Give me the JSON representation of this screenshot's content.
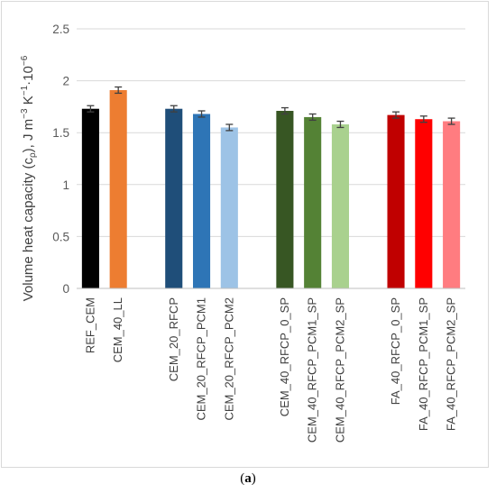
{
  "chart_data": {
    "type": "bar",
    "title": "",
    "ylabel_parts": {
      "main": "Volume heat capacity (c",
      "sub": "ρ",
      "after_sub": "),  J m",
      "sup1": "−3",
      "mid": " K",
      "sup2": "−1",
      "tail": "10",
      "sup3": "−6"
    },
    "ylim": [
      0,
      2.5
    ],
    "yticks": [
      "0",
      "0.5",
      "1",
      "1.5",
      "2",
      "2.5"
    ],
    "ytick_values": [
      0,
      0.5,
      1,
      1.5,
      2,
      2.5
    ],
    "grid": true,
    "categories": [
      "REF_CEM",
      "CEM_40_LL",
      "CEM_20_RFCP",
      "CEM_20_RFCP_PCM1",
      "CEM_20_RFCP_PCM2",
      "CEM_40_RFCP_0_SP",
      "CEM_40_RFCP_PCM1_SP",
      "CEM_40_RFCP_PCM2_SP",
      "FA_40_RFCP_0_SP",
      "FA_40_RFCP_PCM1_SP",
      "FA_40_RFCP_PCM2_SP"
    ],
    "groups": [
      0,
      0,
      1,
      1,
      1,
      2,
      2,
      2,
      3,
      3,
      3
    ],
    "values": [
      1.73,
      1.91,
      1.73,
      1.68,
      1.55,
      1.71,
      1.65,
      1.58,
      1.67,
      1.63,
      1.61
    ],
    "errors": [
      0.03,
      0.03,
      0.03,
      0.03,
      0.03,
      0.03,
      0.03,
      0.03,
      0.03,
      0.03,
      0.03
    ],
    "colors": [
      "#000000",
      "#ED7D31",
      "#1F4E79",
      "#2E75B6",
      "#9DC3E6",
      "#375623",
      "#548235",
      "#A9D18E",
      "#C00000",
      "#FF0000",
      "#FF7C80"
    ]
  },
  "caption": {
    "open": "(",
    "letter": "a",
    "close": ")"
  }
}
